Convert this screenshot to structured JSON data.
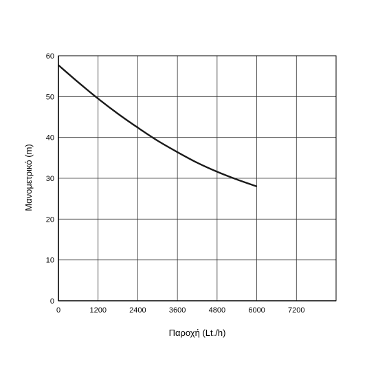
{
  "chart_data": {
    "type": "line",
    "title": "",
    "xlabel": "Παροχή (Lt./h)",
    "ylabel": "Μανομετρικό  (m)",
    "xlim": [
      0,
      8400
    ],
    "ylim": [
      0,
      60
    ],
    "x_ticks": [
      "0",
      "1200",
      "2400",
      "3600",
      "4800",
      "6000",
      "7200"
    ],
    "y_ticks": [
      "0",
      "10",
      "20",
      "30",
      "40",
      "50",
      "60"
    ],
    "grid": true,
    "legend": "none",
    "series": [
      {
        "x": [
          0,
          600,
          1200,
          1800,
          2400,
          3000,
          3600,
          4200,
          4800,
          5400,
          6000
        ],
        "y": [
          57.7,
          53.5,
          49.5,
          45.8,
          42.4,
          39.2,
          36.4,
          33.8,
          31.6,
          29.7,
          28.0
        ],
        "color": "#1a1a1a"
      }
    ],
    "colors": {
      "grid": "#333333",
      "axis": "#000000",
      "line": "#1a1a1a"
    }
  }
}
